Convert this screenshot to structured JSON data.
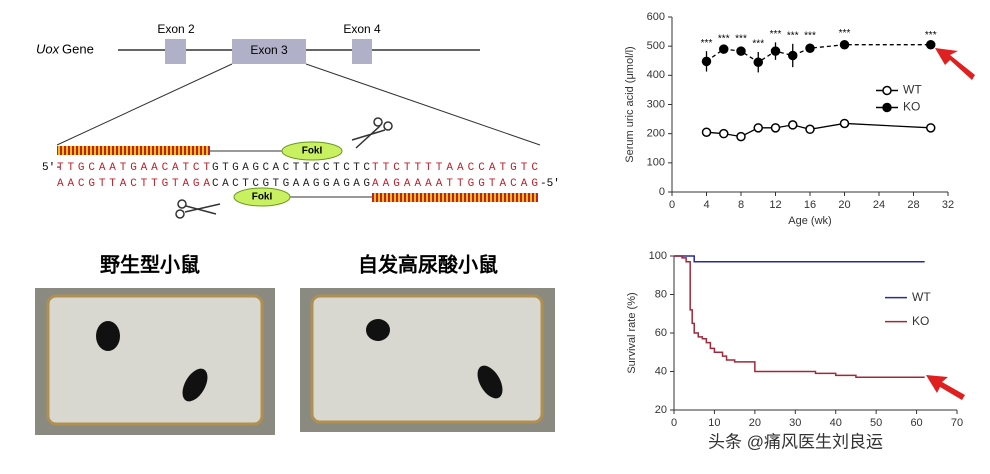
{
  "diagram": {
    "gene_label_italic": "Uox",
    "gene_label": "Gene",
    "exons": [
      "Exon 2",
      "Exon 3",
      "Exon 4"
    ],
    "enzyme": [
      "FokI",
      "FokI"
    ],
    "top_strand": {
      "start": "5'-",
      "segments": [
        "TTGCAATGAACATCT",
        "GTGAGCACTTCCTCTC",
        "TTCTTTTAACCATGTC"
      ]
    },
    "bottom_strand": {
      "segments": [
        "AACGTTACTTGTAGA",
        "CACTCGTGAAGGAGAG",
        "AAGAAAATTGGTACAG"
      ],
      "end": "-5'"
    }
  },
  "photos": [
    {
      "title": "野生型小鼠"
    },
    {
      "title": "自发高尿酸小鼠"
    }
  ],
  "chart_data": [
    {
      "type": "line",
      "x": [
        4,
        6,
        8,
        10,
        12,
        14,
        16,
        20,
        30
      ],
      "series": [
        {
          "name": "WT",
          "color": "#000000",
          "marker": "open",
          "linestyle": "solid",
          "values": [
            205,
            200,
            190,
            220,
            220,
            230,
            215,
            235,
            220
          ],
          "error": [
            15,
            12,
            8,
            8,
            8,
            8,
            5,
            5,
            5
          ]
        },
        {
          "name": "KO",
          "color": "#000000",
          "marker": "filled",
          "linestyle": "dashed",
          "values": [
            448,
            490,
            483,
            445,
            483,
            468,
            493,
            505,
            505
          ],
          "error": [
            35,
            8,
            15,
            35,
            30,
            40,
            15,
            12,
            5
          ]
        }
      ],
      "significance": [
        "***",
        "***",
        "***",
        "***",
        "***",
        "***",
        "***",
        "***",
        "***"
      ],
      "xlabel": "Age (wk)",
      "ylabel": "Serum uric acid (μmol/l)",
      "xlim": [
        0,
        32
      ],
      "xticks": [
        0,
        4,
        8,
        12,
        16,
        20,
        24,
        28,
        32
      ],
      "ylim": [
        0,
        600
      ],
      "yticks": [
        0,
        100,
        200,
        300,
        400,
        500,
        600
      ],
      "legend": "center-right"
    },
    {
      "type": "step",
      "series": [
        {
          "name": "WT",
          "color": "#2a2a9a",
          "x": [
            0,
            5,
            62
          ],
          "values": [
            100,
            97,
            97
          ]
        },
        {
          "name": "KO",
          "color": "#a0283a",
          "x": [
            0,
            2,
            3,
            4,
            4.5,
            5,
            6,
            7,
            8,
            9,
            10,
            12,
            13,
            15,
            20,
            35,
            40,
            45,
            62
          ],
          "values": [
            100,
            99,
            97,
            72,
            65,
            60,
            58,
            57,
            55,
            52,
            50,
            48,
            46,
            45,
            40,
            39,
            38,
            37,
            37
          ]
        }
      ],
      "ylabel": "Survival rate (%)",
      "xlim": [
        0,
        70
      ],
      "xticks": [
        0,
        10,
        20,
        30,
        40,
        50,
        60,
        70
      ],
      "ylim": [
        20,
        100
      ],
      "yticks": [
        20,
        40,
        60,
        80,
        100
      ],
      "legend": "upper-right"
    }
  ],
  "watermark": "头条 @痛风医生刘良运"
}
